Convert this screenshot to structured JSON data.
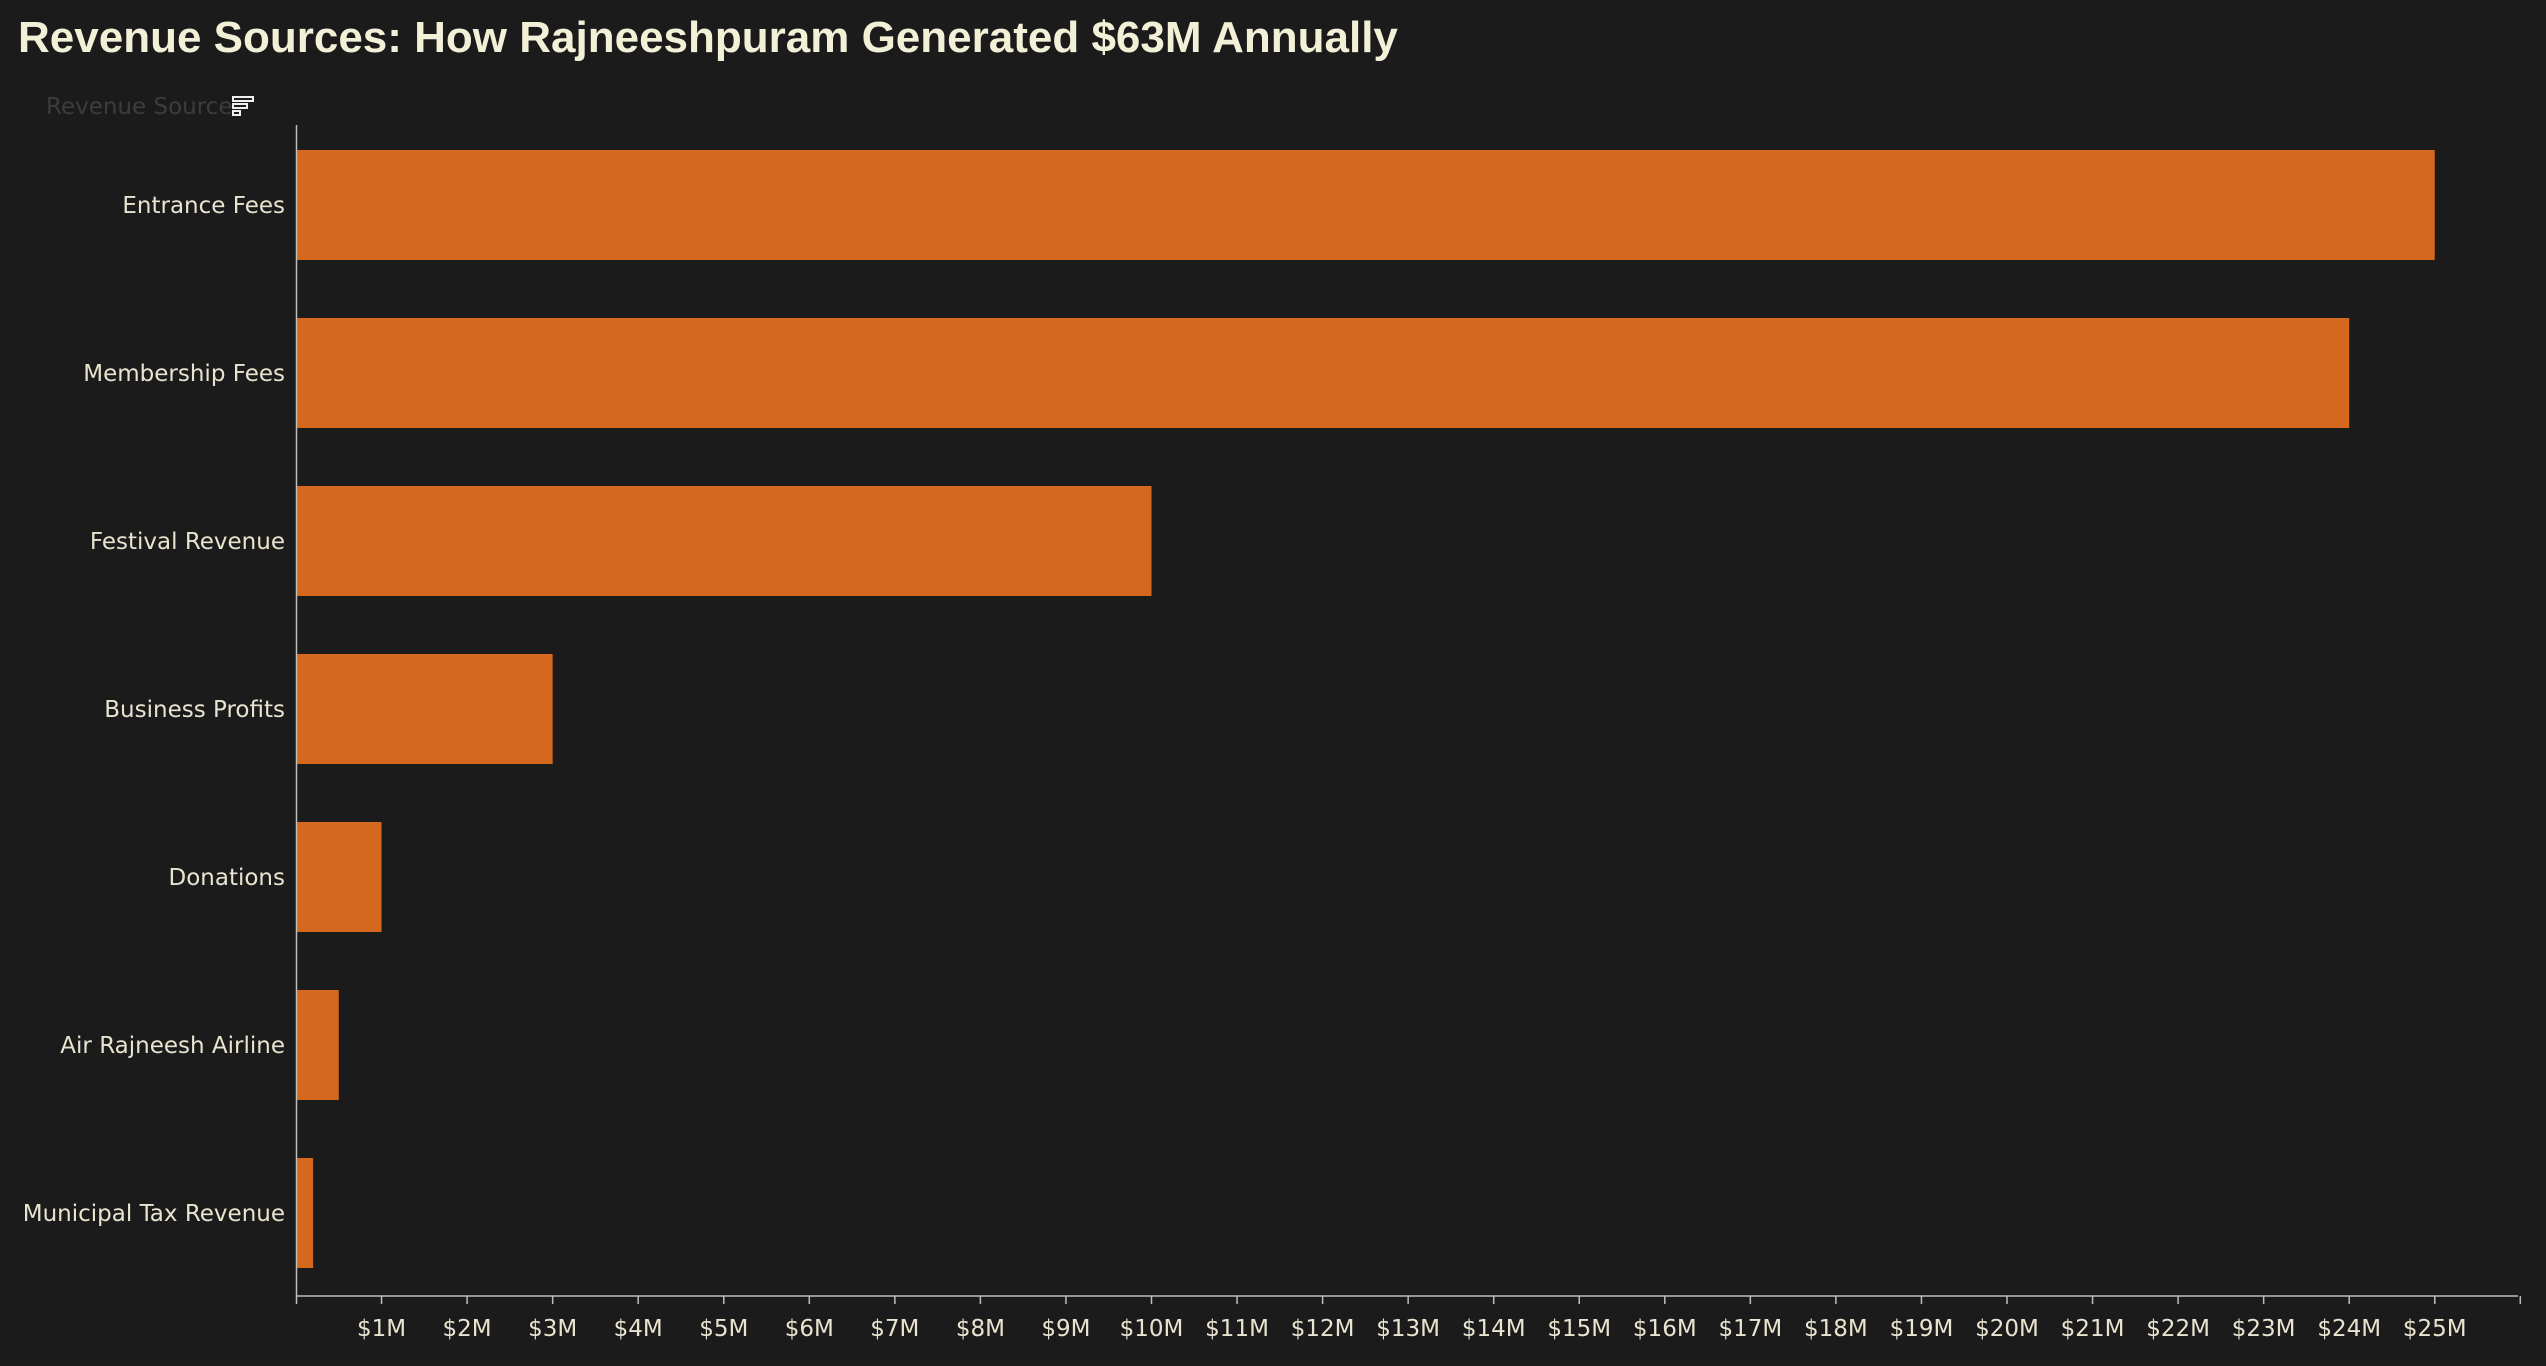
{
  "title": "Revenue Sources: How Rajneeshpuram Generated $63M Annually",
  "field_header": "Revenue Source",
  "sort_icon": "sort-descending-icon",
  "colors": {
    "background": "#1b1b1b",
    "bar": "#d4681f",
    "axis": "#bdbdbd",
    "text": "#e8e4d0"
  },
  "chart_data": {
    "type": "bar",
    "orientation": "horizontal",
    "title": "Revenue Sources: How Rajneeshpuram Generated $63M Annually",
    "ylabel": "Revenue Source",
    "xlabel": "",
    "categories": [
      "Entrance Fees",
      "Membership Fees",
      "Festival Revenue",
      "Business Profits",
      "Donations",
      "Air Rajneesh Airline",
      "Municipal Tax Revenue"
    ],
    "values": [
      25000000,
      24000000,
      10000000,
      3000000,
      1000000,
      500000,
      200000
    ],
    "xlim": [
      0,
      26000000
    ],
    "x_ticks": [
      1000000,
      2000000,
      3000000,
      4000000,
      5000000,
      6000000,
      7000000,
      8000000,
      9000000,
      10000000,
      11000000,
      12000000,
      13000000,
      14000000,
      15000000,
      16000000,
      17000000,
      18000000,
      19000000,
      20000000,
      21000000,
      22000000,
      23000000,
      24000000,
      25000000
    ],
    "x_tick_labels": [
      "$1M",
      "$2M",
      "$3M",
      "$4M",
      "$5M",
      "$6M",
      "$7M",
      "$8M",
      "$9M",
      "$10M",
      "$11M",
      "$12M",
      "$13M",
      "$14M",
      "$15M",
      "$16M",
      "$17M",
      "$18M",
      "$19M",
      "$20M",
      "$21M",
      "$22M",
      "$23M",
      "$24M",
      "$25M"
    ],
    "grid": false,
    "legend": "none"
  }
}
